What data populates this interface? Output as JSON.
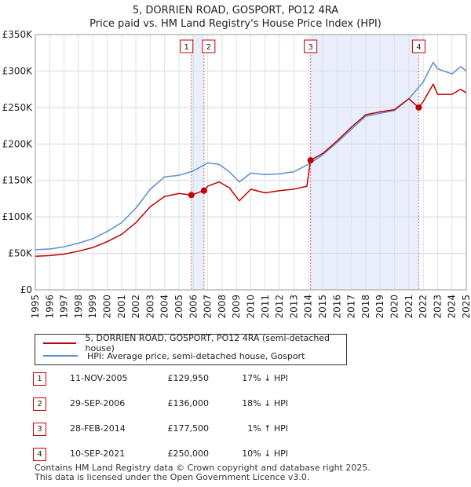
{
  "chart_data": {
    "type": "line",
    "title": "5, DORRIEN ROAD, GOSPORT, PO12 4RA",
    "subtitle": "Price paid vs. HM Land Registry's House Price Index (HPI)",
    "xlim": [
      1995,
      2025
    ],
    "ylim": [
      0,
      350000
    ],
    "x_ticks": [
      "1995",
      "1996",
      "1997",
      "1998",
      "1999",
      "2000",
      "2001",
      "2002",
      "2003",
      "2004",
      "2005",
      "2006",
      "2007",
      "2008",
      "2009",
      "2010",
      "2011",
      "2012",
      "2013",
      "2014",
      "2015",
      "2016",
      "2017",
      "2018",
      "2019",
      "2020",
      "2021",
      "2022",
      "2023",
      "2024",
      "2025"
    ],
    "y_ticks": [
      {
        "value": 0,
        "label": "£0"
      },
      {
        "value": 50000,
        "label": "£50K"
      },
      {
        "value": 100000,
        "label": "£100K"
      },
      {
        "value": 150000,
        "label": "£150K"
      },
      {
        "value": 200000,
        "label": "£200K"
      },
      {
        "value": 250000,
        "label": "£250K"
      },
      {
        "value": 300000,
        "label": "£300K"
      },
      {
        "value": 350000,
        "label": "£350K"
      }
    ],
    "series": [
      {
        "name": "HPI: Average price, semi-detached house, Gosport",
        "color": "#5b8fcf",
        "points": [
          [
            1995,
            55000
          ],
          [
            1996,
            56000
          ],
          [
            1997,
            59000
          ],
          [
            1998,
            64000
          ],
          [
            1999,
            70000
          ],
          [
            2000,
            80000
          ],
          [
            2001,
            92000
          ],
          [
            2002,
            112000
          ],
          [
            2003,
            138000
          ],
          [
            2004,
            155000
          ],
          [
            2005,
            157000
          ],
          [
            2006,
            163000
          ],
          [
            2007,
            174000
          ],
          [
            2007.8,
            172000
          ],
          [
            2008.5,
            162000
          ],
          [
            2009.2,
            148000
          ],
          [
            2010,
            160000
          ],
          [
            2011,
            158000
          ],
          [
            2012,
            159000
          ],
          [
            2013,
            162000
          ],
          [
            2014,
            172000
          ],
          [
            2015,
            185000
          ],
          [
            2016,
            202000
          ],
          [
            2017,
            220000
          ],
          [
            2018,
            238000
          ],
          [
            2019,
            242000
          ],
          [
            2020,
            246000
          ],
          [
            2021,
            262000
          ],
          [
            2022,
            285000
          ],
          [
            2022.7,
            312000
          ],
          [
            2023,
            303000
          ],
          [
            2024,
            296000
          ],
          [
            2024.6,
            306000
          ],
          [
            2025,
            300000
          ]
        ]
      },
      {
        "name": "5, DORRIEN ROAD, GOSPORT, PO12 4RA (semi-detached house)",
        "color": "#c00000",
        "points": [
          [
            1995,
            46000
          ],
          [
            1996,
            47000
          ],
          [
            1997,
            49000
          ],
          [
            1998,
            53000
          ],
          [
            1999,
            58000
          ],
          [
            2000,
            66000
          ],
          [
            2001,
            76000
          ],
          [
            2002,
            92000
          ],
          [
            2003,
            114000
          ],
          [
            2004,
            128000
          ],
          [
            2005,
            132000
          ],
          [
            2005.86,
            129950
          ],
          [
            2006.74,
            136000
          ],
          [
            2007,
            142000
          ],
          [
            2007.8,
            148000
          ],
          [
            2008.5,
            140000
          ],
          [
            2009.2,
            122000
          ],
          [
            2010,
            138000
          ],
          [
            2011,
            133000
          ],
          [
            2012,
            136000
          ],
          [
            2013,
            138000
          ],
          [
            2013.9,
            142000
          ],
          [
            2014.16,
            177500
          ],
          [
            2015,
            187000
          ],
          [
            2016,
            204000
          ],
          [
            2017,
            223000
          ],
          [
            2018,
            240000
          ],
          [
            2019,
            244000
          ],
          [
            2020,
            247000
          ],
          [
            2021,
            262000
          ],
          [
            2021.69,
            250000
          ],
          [
            2022,
            258000
          ],
          [
            2022.7,
            282000
          ],
          [
            2023,
            268000
          ],
          [
            2024,
            268000
          ],
          [
            2024.6,
            275000
          ],
          [
            2025,
            270000
          ]
        ]
      }
    ],
    "transactions": [
      {
        "num": "1",
        "x": 2005.86,
        "price_value": 129950
      },
      {
        "num": "2",
        "x": 2006.74,
        "price_value": 136000
      },
      {
        "num": "3",
        "x": 2014.16,
        "price_value": 177500
      },
      {
        "num": "4",
        "x": 2021.69,
        "price_value": 250000
      }
    ],
    "shaded_ranges": [
      [
        2005.86,
        2006.74
      ],
      [
        2014.16,
        2021.69
      ]
    ]
  },
  "legend": {
    "items": [
      {
        "label": "5, DORRIEN ROAD, GOSPORT, PO12 4RA (semi-detached house)",
        "color": "#c00000"
      },
      {
        "label": "HPI: Average price, semi-detached house, Gosport",
        "color": "#5b8fcf"
      }
    ]
  },
  "table": {
    "rows": [
      {
        "num": "1",
        "date": "11-NOV-2005",
        "price": "£129,950",
        "hpi": "17% ↓ HPI"
      },
      {
        "num": "2",
        "date": "29-SEP-2006",
        "price": "£136,000",
        "hpi": "18% ↓ HPI"
      },
      {
        "num": "3",
        "date": "28-FEB-2014",
        "price": "£177,500",
        "hpi": "1% ↑ HPI"
      },
      {
        "num": "4",
        "date": "10-SEP-2021",
        "price": "£250,000",
        "hpi": "10% ↓ HPI"
      }
    ]
  },
  "footer": {
    "line1": "Contains HM Land Registry data © Crown copyright and database right 2025.",
    "line2": "This data is licensed under the Open Government Licence v3.0."
  }
}
